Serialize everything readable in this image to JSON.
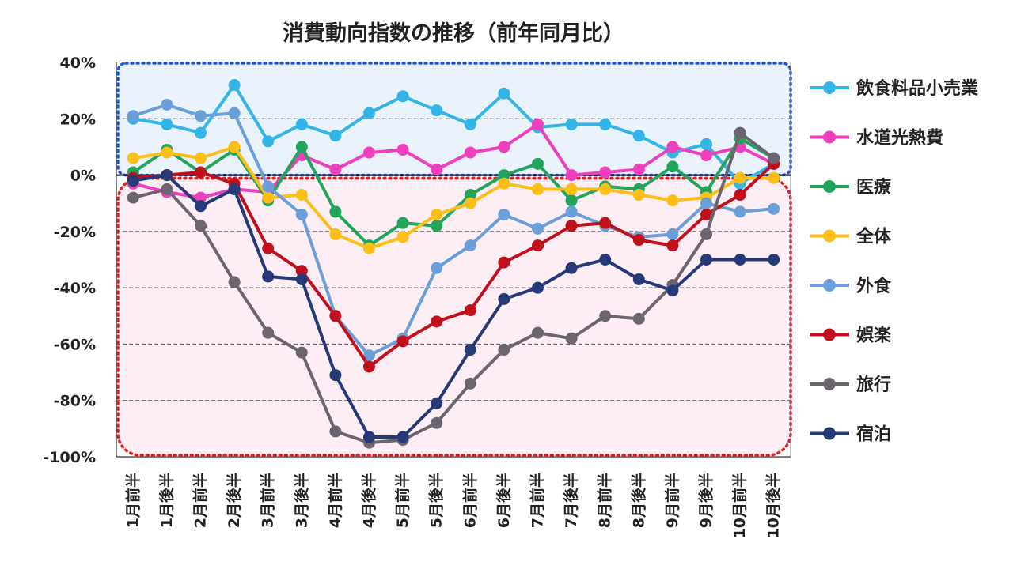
{
  "chart_data": {
    "type": "line",
    "title": "消費動向指数の推移（前年同月比）",
    "xlabel": "",
    "ylabel": "",
    "ylim": [
      -100,
      40
    ],
    "yticks": [
      40,
      20,
      0,
      -20,
      -40,
      -60,
      -80,
      -100
    ],
    "ytick_labels": [
      "40%",
      "20%",
      "0%",
      "-20%",
      "-40%",
      "-60%",
      "-80%",
      "-100%"
    ],
    "grid": "horizontal dashed",
    "legend_position": "right",
    "categories": [
      "1月前半",
      "1月後半",
      "2月前半",
      "2月後半",
      "3月前半",
      "3月後半",
      "4月前半",
      "4月後半",
      "5月前半",
      "5月後半",
      "6月前半",
      "6月後半",
      "7月前半",
      "7月後半",
      "8月前半",
      "8月後半",
      "9月前半",
      "9月後半",
      "10月前半",
      "10月後半"
    ],
    "series": [
      {
        "name": "飲食料品小売業",
        "color": "#33b5e8",
        "values": [
          20,
          18,
          15,
          32,
          12,
          18,
          14,
          22,
          28,
          23,
          18,
          29,
          17,
          18,
          18,
          14,
          8,
          11,
          -3,
          4
        ]
      },
      {
        "name": "水道光熱費",
        "color": "#ee3fbd",
        "values": [
          -3,
          -6,
          -8,
          -5,
          -6,
          7,
          2,
          8,
          9,
          2,
          8,
          10,
          18,
          0,
          1,
          2,
          10,
          7,
          10,
          4
        ]
      },
      {
        "name": "医療",
        "color": "#22a55a",
        "values": [
          1,
          9,
          1,
          9,
          -9,
          10,
          -13,
          -25,
          -17,
          -18,
          -7,
          0,
          4,
          -9,
          -4,
          -5,
          3,
          -6,
          13,
          6
        ]
      },
      {
        "name": "全体",
        "color": "#fbbf18",
        "values": [
          6,
          8,
          6,
          10,
          -8,
          -7,
          -21,
          -26,
          -22,
          -14,
          -10,
          -3,
          -5,
          -5,
          -5,
          -7,
          -9,
          -8,
          -1,
          -1
        ]
      },
      {
        "name": "外食",
        "color": "#6a9fd9",
        "values": [
          21,
          25,
          21,
          22,
          -4,
          -14,
          -50,
          -64,
          -58,
          -33,
          -25,
          -14,
          -19,
          -13,
          -18,
          -22,
          -21,
          -10,
          -13,
          -12
        ]
      },
      {
        "name": "娯楽",
        "color": "#c0101b",
        "values": [
          -1,
          0,
          1,
          -3,
          -26,
          -34,
          -50,
          -68,
          -59,
          -52,
          -48,
          -31,
          -25,
          -18,
          -17,
          -23,
          -25,
          -14,
          -7,
          4
        ]
      },
      {
        "name": "旅行",
        "color": "#6b6570",
        "values": [
          -8,
          -5,
          -18,
          -38,
          -56,
          -63,
          -91,
          -95,
          -94,
          -88,
          -74,
          -62,
          -56,
          -58,
          -50,
          -51,
          -39,
          -21,
          15,
          6
        ]
      },
      {
        "name": "宿泊",
        "color": "#263a78",
        "values": [
          -2,
          0,
          -11,
          -5,
          -36,
          -37,
          -71,
          -93,
          -93,
          -81,
          -62,
          -44,
          -40,
          -33,
          -30,
          -37,
          -41,
          -30,
          -30,
          -30
        ]
      }
    ],
    "regions": [
      {
        "kind": "positive",
        "fill": "#eaf2fc",
        "border": "#2255dd"
      },
      {
        "kind": "negative",
        "fill": "#fdeef6",
        "border": "#e02020"
      }
    ]
  }
}
